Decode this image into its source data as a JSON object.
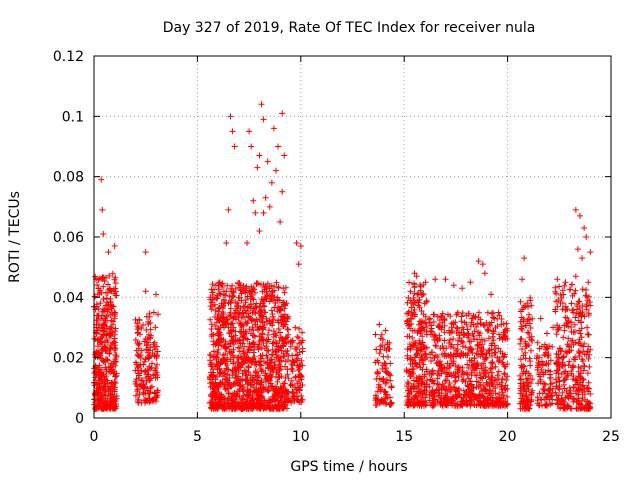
{
  "chart_data": {
    "type": "scatter",
    "title": "Day 327 of 2019, Rate Of TEC Index for receiver nula",
    "xlabel": "GPS time / hours",
    "ylabel": "ROTI / TECUs",
    "xlim": [
      0,
      25
    ],
    "ylim": [
      0,
      0.12
    ],
    "x_ticks": [
      0,
      5,
      10,
      15,
      20,
      25
    ],
    "y_ticks": [
      0,
      0.02,
      0.04,
      0.06,
      0.08,
      0.1,
      0.12
    ],
    "x_tick_labels": [
      "0",
      "5",
      "10",
      "15",
      "20",
      "25"
    ],
    "y_tick_labels": [
      "0",
      "0.02",
      "0.04",
      "0.06",
      "0.08",
      "0.1",
      "0.12"
    ],
    "grid": true,
    "marker": "+",
    "marker_color": "#ff0000",
    "clusters": [
      {
        "x_range": [
          0.0,
          1.1
        ],
        "y_range": [
          0.003,
          0.048
        ],
        "n": 420
      },
      {
        "x_range": [
          2.0,
          3.1
        ],
        "y_range": [
          0.005,
          0.035
        ],
        "n": 170
      },
      {
        "x_range": [
          5.6,
          9.4
        ],
        "y_range": [
          0.003,
          0.045
        ],
        "n": 1200
      },
      {
        "x_range": [
          9.5,
          10.1
        ],
        "y_range": [
          0.005,
          0.03
        ],
        "n": 90
      },
      {
        "x_range": [
          13.6,
          14.4
        ],
        "y_range": [
          0.004,
          0.028
        ],
        "n": 90
      },
      {
        "x_range": [
          15.1,
          16.1
        ],
        "y_range": [
          0.004,
          0.045
        ],
        "n": 260
      },
      {
        "x_range": [
          16.2,
          20.0
        ],
        "y_range": [
          0.004,
          0.035
        ],
        "n": 700
      },
      {
        "x_range": [
          20.6,
          21.2
        ],
        "y_range": [
          0.003,
          0.04
        ],
        "n": 130
      },
      {
        "x_range": [
          21.4,
          22.2
        ],
        "y_range": [
          0.004,
          0.025
        ],
        "n": 90
      },
      {
        "x_range": [
          22.3,
          24.0
        ],
        "y_range": [
          0.003,
          0.045
        ],
        "n": 320
      }
    ],
    "points": [
      [
        0.1,
        0.046
      ],
      [
        0.35,
        0.079
      ],
      [
        0.4,
        0.069
      ],
      [
        0.45,
        0.061
      ],
      [
        0.7,
        0.055
      ],
      [
        1.0,
        0.057
      ],
      [
        2.5,
        0.055
      ],
      [
        2.5,
        0.042
      ],
      [
        3.0,
        0.041
      ],
      [
        6.4,
        0.058
      ],
      [
        6.6,
        0.1
      ],
      [
        6.7,
        0.095
      ],
      [
        6.8,
        0.09
      ],
      [
        6.5,
        0.069
      ],
      [
        7.5,
        0.095
      ],
      [
        7.6,
        0.09
      ],
      [
        7.7,
        0.072
      ],
      [
        7.9,
        0.083
      ],
      [
        8.1,
        0.104
      ],
      [
        8.2,
        0.099
      ],
      [
        8.0,
        0.087
      ],
      [
        8.4,
        0.085
      ],
      [
        8.7,
        0.096
      ],
      [
        8.9,
        0.09
      ],
      [
        9.1,
        0.101
      ],
      [
        9.2,
        0.087
      ],
      [
        9.1,
        0.075
      ],
      [
        8.6,
        0.078
      ],
      [
        8.3,
        0.073
      ],
      [
        8.8,
        0.082
      ],
      [
        8.5,
        0.07
      ],
      [
        7.8,
        0.068
      ],
      [
        9.0,
        0.065
      ],
      [
        8.2,
        0.068
      ],
      [
        7.4,
        0.058
      ],
      [
        8.0,
        0.062
      ],
      [
        9.8,
        0.058
      ],
      [
        10.0,
        0.057
      ],
      [
        9.9,
        0.051
      ],
      [
        13.8,
        0.031
      ],
      [
        14.1,
        0.029
      ],
      [
        15.5,
        0.048
      ],
      [
        15.6,
        0.047
      ],
      [
        15.3,
        0.039
      ],
      [
        16.5,
        0.046
      ],
      [
        17.0,
        0.046
      ],
      [
        17.4,
        0.044
      ],
      [
        17.8,
        0.043
      ],
      [
        18.2,
        0.045
      ],
      [
        18.6,
        0.052
      ],
      [
        18.8,
        0.051
      ],
      [
        18.9,
        0.048
      ],
      [
        19.2,
        0.041
      ],
      [
        19.6,
        0.034
      ],
      [
        20.8,
        0.053
      ],
      [
        20.7,
        0.046
      ],
      [
        21.1,
        0.039
      ],
      [
        21.6,
        0.033
      ],
      [
        21.9,
        0.028
      ],
      [
        22.4,
        0.046
      ],
      [
        22.8,
        0.045
      ],
      [
        22.2,
        0.03
      ],
      [
        23.3,
        0.069
      ],
      [
        23.5,
        0.067
      ],
      [
        23.7,
        0.063
      ],
      [
        23.8,
        0.06
      ],
      [
        23.4,
        0.056
      ],
      [
        23.6,
        0.053
      ],
      [
        23.3,
        0.047
      ],
      [
        23.9,
        0.045
      ],
      [
        24.0,
        0.055
      ]
    ]
  }
}
